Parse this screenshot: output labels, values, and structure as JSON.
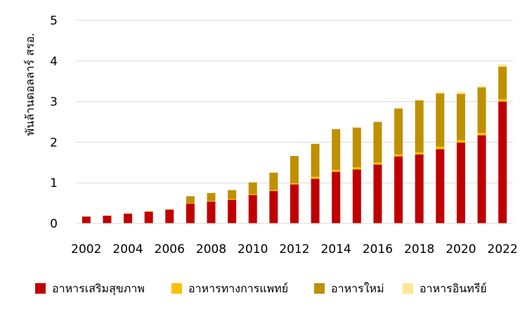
{
  "chart_data": {
    "type": "bar",
    "stacked": true,
    "title": "",
    "xlabel": "",
    "ylabel": "พันล้านดอลลาร์ สรอ.",
    "ylim": [
      0,
      5
    ],
    "yticks": [
      0,
      1,
      2,
      3,
      4,
      5
    ],
    "grid": true,
    "legend_position": "bottom",
    "categories": [
      2002,
      2003,
      2004,
      2005,
      2006,
      2007,
      2008,
      2009,
      2010,
      2011,
      2012,
      2013,
      2014,
      2015,
      2016,
      2017,
      2018,
      2019,
      2020,
      2021,
      2022
    ],
    "x_tick_labels": [
      "2002",
      "2004",
      "2006",
      "2008",
      "2010",
      "2012",
      "2014",
      "2016",
      "2018",
      "2020",
      "2022"
    ],
    "series": [
      {
        "name": "อาหารเสริมสุขภาพ",
        "color": "#c00000",
        "values": [
          0.17,
          0.19,
          0.24,
          0.29,
          0.34,
          0.49,
          0.54,
          0.58,
          0.7,
          0.8,
          0.96,
          1.1,
          1.27,
          1.33,
          1.45,
          1.65,
          1.7,
          1.83,
          1.99,
          2.17,
          3.0
        ]
      },
      {
        "name": "อาหารทางการแพทย์",
        "color": "#ffc000",
        "values": [
          0.0,
          0.0,
          0.0,
          0.01,
          0.01,
          0.01,
          0.01,
          0.02,
          0.02,
          0.02,
          0.03,
          0.05,
          0.05,
          0.05,
          0.05,
          0.05,
          0.05,
          0.06,
          0.06,
          0.06,
          0.06
        ]
      },
      {
        "name": "อาหารใหม่",
        "color": "#bf9000",
        "values": [
          0.0,
          0.0,
          0.0,
          0.0,
          0.0,
          0.17,
          0.2,
          0.22,
          0.29,
          0.43,
          0.67,
          0.81,
          1.0,
          0.98,
          1.0,
          1.13,
          1.28,
          1.31,
          1.14,
          1.12,
          0.8
        ]
      },
      {
        "name": "อาหารอินทรีย์",
        "color": "#ffe699",
        "values": [
          0.01,
          0.01,
          0.01,
          0.0,
          0.0,
          0.0,
          0.0,
          0.0,
          0.0,
          0.0,
          0.0,
          0.0,
          0.0,
          0.0,
          0.0,
          0.01,
          0.01,
          0.04,
          0.05,
          0.04,
          0.06
        ]
      }
    ]
  }
}
